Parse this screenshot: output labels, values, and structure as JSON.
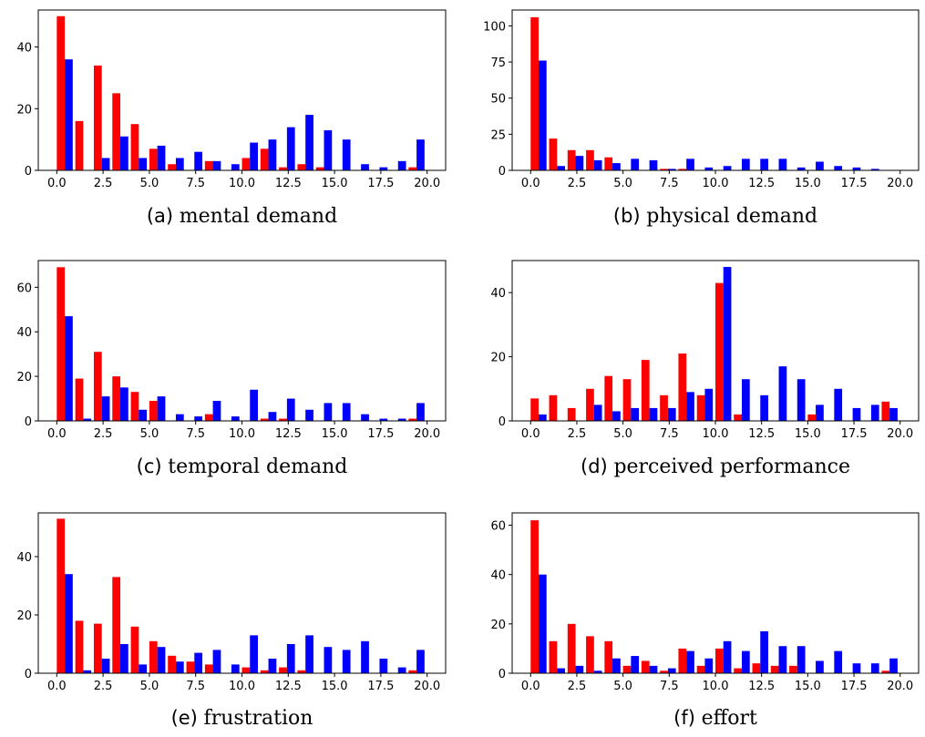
{
  "colors": {
    "series_a": "#ff0000",
    "series_b": "#0000ff"
  },
  "chart_data": [
    {
      "type": "bar",
      "caption_tag": "(a)",
      "caption": "mental demand",
      "xlim": [
        -1,
        21
      ],
      "ylim": [
        0,
        52
      ],
      "xticks": [
        0.0,
        2.5,
        5.0,
        7.5,
        10.0,
        12.5,
        15.0,
        17.5,
        20.0
      ],
      "yticks": [
        0,
        20,
        40
      ],
      "x": [
        0,
        1,
        2,
        3,
        4,
        5,
        6,
        7,
        8,
        9,
        10,
        11,
        12,
        13,
        14,
        15,
        16,
        17,
        18,
        19
      ],
      "series": [
        {
          "values": [
            50,
            16,
            34,
            25,
            15,
            7,
            2,
            0,
            3,
            0,
            4,
            7,
            1,
            2,
            1,
            0,
            0,
            0,
            0,
            1
          ]
        },
        {
          "values": [
            36,
            0,
            4,
            11,
            4,
            8,
            4,
            6,
            3,
            2,
            9,
            10,
            14,
            18,
            13,
            10,
            2,
            1,
            3,
            10
          ]
        }
      ]
    },
    {
      "type": "bar",
      "caption_tag": "(b)",
      "caption": "physical demand",
      "xlim": [
        -1,
        21
      ],
      "ylim": [
        0,
        111
      ],
      "xticks": [
        0.0,
        2.5,
        5.0,
        7.5,
        10.0,
        12.5,
        15.0,
        17.5,
        20.0
      ],
      "yticks": [
        0,
        25,
        50,
        75,
        100
      ],
      "x": [
        0,
        1,
        2,
        3,
        4,
        5,
        6,
        7,
        8,
        9,
        10,
        11,
        12,
        13,
        14,
        15,
        16,
        17,
        18,
        19
      ],
      "series": [
        {
          "values": [
            106,
            22,
            14,
            14,
            9,
            0,
            0,
            1,
            1,
            0,
            0,
            0,
            0,
            0,
            0,
            0,
            0,
            0,
            0,
            0
          ]
        },
        {
          "values": [
            76,
            3,
            10,
            7,
            5,
            8,
            7,
            1,
            8,
            2,
            3,
            8,
            8,
            8,
            2,
            6,
            3,
            2,
            1,
            0
          ]
        }
      ]
    },
    {
      "type": "bar",
      "caption_tag": "(c)",
      "caption": "temporal demand",
      "xlim": [
        -1,
        21
      ],
      "ylim": [
        0,
        72
      ],
      "xticks": [
        0.0,
        2.5,
        5.0,
        7.5,
        10.0,
        12.5,
        15.0,
        17.5,
        20.0
      ],
      "yticks": [
        0,
        20,
        40,
        60
      ],
      "x": [
        0,
        1,
        2,
        3,
        4,
        5,
        6,
        7,
        8,
        9,
        10,
        11,
        12,
        13,
        14,
        15,
        16,
        17,
        18,
        19
      ],
      "series": [
        {
          "values": [
            69,
            19,
            31,
            20,
            13,
            9,
            0,
            0,
            3,
            0,
            0,
            1,
            1,
            0,
            0,
            0,
            0,
            0,
            0,
            1
          ]
        },
        {
          "values": [
            47,
            1,
            11,
            15,
            5,
            11,
            3,
            2,
            9,
            2,
            14,
            4,
            10,
            5,
            8,
            8,
            3,
            1,
            1,
            8
          ]
        }
      ]
    },
    {
      "type": "bar",
      "caption_tag": "(d)",
      "caption": "perceived performance",
      "xlim": [
        -1,
        21
      ],
      "ylim": [
        0,
        50
      ],
      "xticks": [
        0.0,
        2.5,
        5.0,
        7.5,
        10.0,
        12.5,
        15.0,
        17.5,
        20.0
      ],
      "yticks": [
        0,
        20,
        40
      ],
      "x": [
        0,
        1,
        2,
        3,
        4,
        5,
        6,
        7,
        8,
        9,
        10,
        11,
        12,
        13,
        14,
        15,
        16,
        17,
        18,
        19
      ],
      "series": [
        {
          "values": [
            7,
            8,
            4,
            10,
            14,
            13,
            19,
            8,
            21,
            8,
            43,
            2,
            0,
            0,
            0,
            2,
            0,
            0,
            0,
            6
          ]
        },
        {
          "values": [
            2,
            0,
            0,
            5,
            3,
            4,
            4,
            4,
            9,
            10,
            48,
            13,
            8,
            17,
            13,
            5,
            10,
            4,
            5,
            4
          ]
        }
      ]
    },
    {
      "type": "bar",
      "caption_tag": "(e)",
      "caption": "frustration",
      "xlim": [
        -1,
        21
      ],
      "ylim": [
        0,
        55
      ],
      "xticks": [
        0.0,
        2.5,
        5.0,
        7.5,
        10.0,
        12.5,
        15.0,
        17.5,
        20.0
      ],
      "yticks": [
        0,
        20,
        40
      ],
      "x": [
        0,
        1,
        2,
        3,
        4,
        5,
        6,
        7,
        8,
        9,
        10,
        11,
        12,
        13,
        14,
        15,
        16,
        17,
        18,
        19
      ],
      "series": [
        {
          "values": [
            53,
            18,
            17,
            33,
            16,
            11,
            6,
            4,
            3,
            0,
            2,
            1,
            2,
            1,
            0,
            0,
            0,
            0,
            0,
            1
          ]
        },
        {
          "values": [
            34,
            1,
            5,
            10,
            3,
            9,
            4,
            7,
            8,
            3,
            13,
            5,
            10,
            13,
            9,
            8,
            11,
            5,
            2,
            8
          ]
        }
      ]
    },
    {
      "type": "bar",
      "caption_tag": "(f)",
      "caption": "effort",
      "xlim": [
        -1,
        21
      ],
      "ylim": [
        0,
        65
      ],
      "xticks": [
        0.0,
        2.5,
        5.0,
        7.5,
        10.0,
        12.5,
        15.0,
        17.5,
        20.0
      ],
      "yticks": [
        0,
        20,
        40,
        60
      ],
      "x": [
        0,
        1,
        2,
        3,
        4,
        5,
        6,
        7,
        8,
        9,
        10,
        11,
        12,
        13,
        14,
        15,
        16,
        17,
        18,
        19
      ],
      "series": [
        {
          "values": [
            62,
            13,
            20,
            15,
            13,
            3,
            5,
            1,
            10,
            3,
            10,
            2,
            4,
            3,
            3,
            0,
            0,
            0,
            0,
            1
          ]
        },
        {
          "values": [
            40,
            2,
            3,
            1,
            6,
            7,
            3,
            2,
            9,
            6,
            13,
            9,
            17,
            11,
            11,
            5,
            9,
            4,
            4,
            6
          ]
        }
      ]
    }
  ]
}
